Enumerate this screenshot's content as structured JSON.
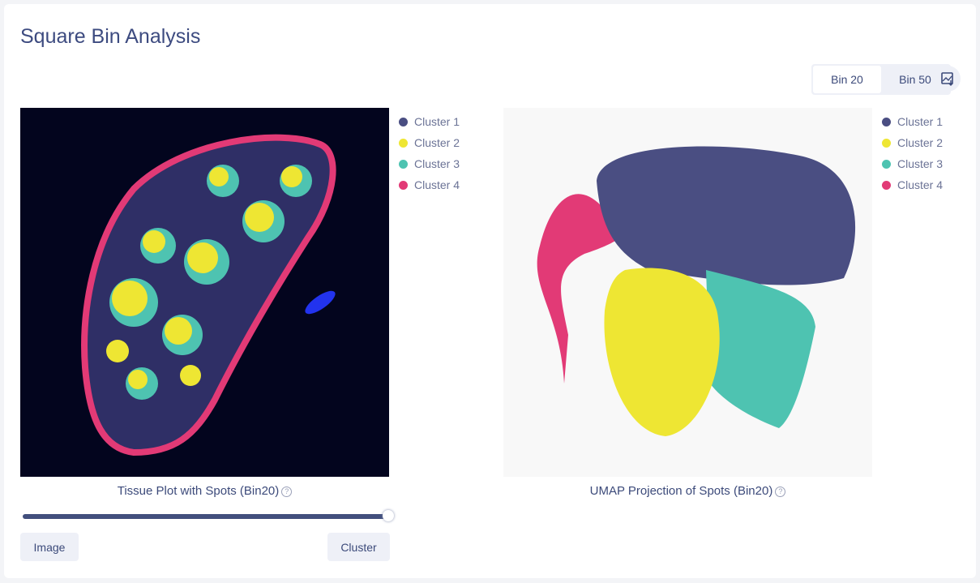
{
  "title": "Square Bin Analysis",
  "bins": [
    {
      "label": "Bin 20",
      "selected": true
    },
    {
      "label": "Bin 50",
      "selected": false
    }
  ],
  "download_icon": "image-download-icon",
  "colors": {
    "cluster_1": "#4a4e82",
    "cluster_2": "#eee633",
    "cluster_3": "#4ec3b1",
    "cluster_4": "#e23a76"
  },
  "legend": [
    "Cluster 1",
    "Cluster 2",
    "Cluster 3",
    "Cluster 4"
  ],
  "tissue": {
    "caption": "Tissue Plot with Spots (Bin20)",
    "help_icon": "question-circle-icon"
  },
  "umap": {
    "caption": "UMAP Projection of Spots (Bin20)",
    "help_icon": "question-circle-icon"
  },
  "slider": {
    "value_percent": 100
  },
  "buttons": {
    "image": "Image",
    "cluster": "Cluster"
  }
}
